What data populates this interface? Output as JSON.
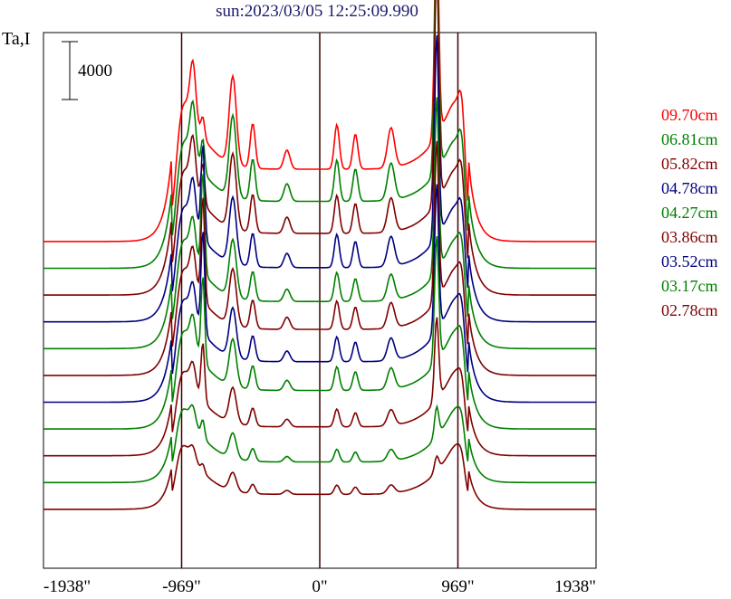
{
  "chart_data": {
    "type": "line",
    "title": "sun:2023/03/05 12:25:09.990",
    "ylabel": "Ta,I",
    "scale_bar_label": "4000",
    "x_ticks": [
      "-1938\"",
      "-969\"",
      "0\"",
      "969\"",
      "1938\""
    ],
    "x_tick_values": [
      -1938,
      -969,
      0,
      969,
      1938
    ],
    "xlim": [
      -1938,
      1938
    ],
    "vertical_lines": [
      -969,
      0,
      969
    ],
    "grid": false,
    "legend_placement": "right",
    "series": [
      {
        "name": "09.70cm",
        "color": "#ff0000",
        "baseline": 61,
        "peak": 45,
        "limb": 0.75,
        "mid": 0.3,
        "spikeL": 0.08,
        "spikeR": 0.82
      },
      {
        "name": "06.81cm",
        "color": "#008000",
        "baseline": 56,
        "peak": 50,
        "limb": 0.62,
        "mid": 0.25,
        "spikeL": 0.12,
        "spikeR": 0.85
      },
      {
        "name": "05.82cm",
        "color": "#800000",
        "baseline": 51,
        "peak": 48,
        "limb": 0.64,
        "mid": 0.24,
        "spikeL": 0.15,
        "spikeR": 0.88
      },
      {
        "name": "04.78cm",
        "color": "#000080",
        "baseline": 46,
        "peak": 46,
        "limb": 0.62,
        "mid": 0.22,
        "spikeL": 0.38,
        "spikeR": 0.78
      },
      {
        "name": "04.27cm",
        "color": "#008000",
        "baseline": 41,
        "peak": 44,
        "limb": 0.62,
        "mid": 0.2,
        "spikeL": 0.42,
        "spikeR": 0.7
      },
      {
        "name": "03.86cm",
        "color": "#800000",
        "baseline": 36,
        "peak": 43,
        "limb": 0.62,
        "mid": 0.2,
        "spikeL": 0.45,
        "spikeR": 0.65
      },
      {
        "name": "03.52cm",
        "color": "#000080",
        "baseline": 31,
        "peak": 42,
        "limb": 0.62,
        "mid": 0.18,
        "spikeL": 0.45,
        "spikeR": 0.62
      },
      {
        "name": "03.17cm",
        "color": "#008000",
        "baseline": 26,
        "peak": 40,
        "limb": 0.62,
        "mid": 0.18,
        "spikeL": 0.4,
        "spikeR": 0.55
      },
      {
        "name": "02.78cm",
        "color": "#800000",
        "baseline": 21,
        "peak": 36,
        "limb": 0.6,
        "mid": 0.15,
        "spikeL": 0.3,
        "spikeR": 0.4
      },
      {
        "name": "",
        "color": "#008000",
        "baseline": 16,
        "peak": 32,
        "limb": 0.6,
        "mid": 0.12,
        "spikeL": 0.1,
        "spikeR": 0.15
      },
      {
        "name": "",
        "color": "#800000",
        "baseline": 11,
        "peak": 28,
        "limb": 0.6,
        "mid": 0.1,
        "spikeL": 0.05,
        "spikeR": 0.08
      }
    ]
  }
}
